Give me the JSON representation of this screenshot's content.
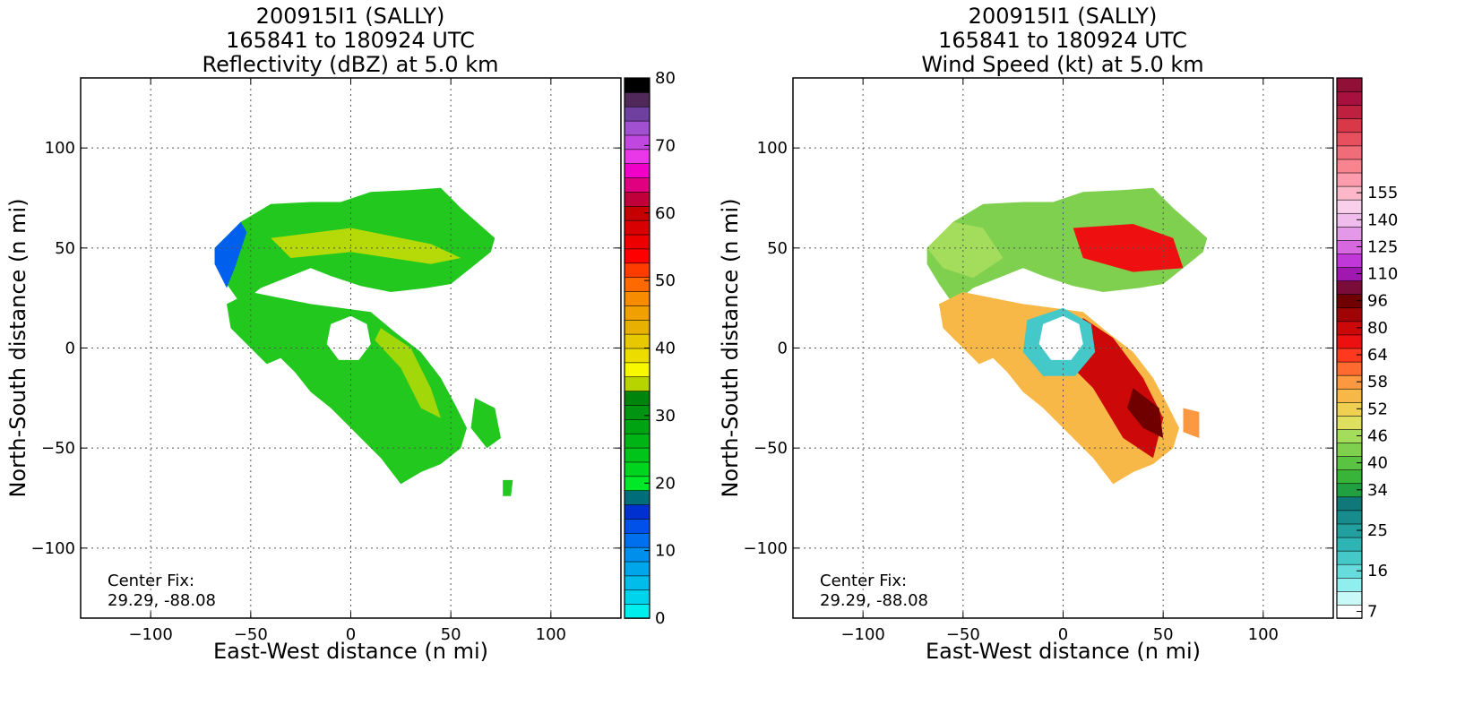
{
  "chart_data": [
    {
      "type": "heatmap",
      "title_lines": [
        "200915I1 (SALLY)",
        "165841 to 180924 UTC",
        "Reflectivity (dBZ) at 5.0 km"
      ],
      "xlabel": "East-West distance (n mi)",
      "ylabel": "North-South distance (n mi)",
      "xlim": [
        -135,
        135
      ],
      "ylim": [
        -135,
        135
      ],
      "xticks": [
        "−100",
        "−50",
        "0",
        "50",
        "100"
      ],
      "xtick_values": [
        -100,
        -50,
        0,
        50,
        100
      ],
      "yticks": [
        "−100",
        "−50",
        "0",
        "50",
        "100"
      ],
      "ytick_values": [
        -100,
        -50,
        0,
        50,
        100
      ],
      "grid": true,
      "annotation": [
        "Center Fix:",
        "29.29, -88.08"
      ],
      "colorbar": {
        "vmin": 0,
        "vmax": 80,
        "tick_values": [
          0,
          10,
          20,
          30,
          40,
          50,
          60,
          70,
          80
        ],
        "tick_labels": [
          "0",
          "10",
          "20",
          "30",
          "40",
          "50",
          "60",
          "70",
          "80"
        ],
        "colors": [
          "#00eeee",
          "#00d4ec",
          "#00bdea",
          "#00a6ea",
          "#0090ec",
          "#0070ee",
          "#0050ea",
          "#0030d0",
          "#006e7a",
          "#00e828",
          "#00d41e",
          "#00c41a",
          "#00b416",
          "#00a412",
          "#009410",
          "#00840c",
          "#b8d400",
          "#f8f800",
          "#ecdc00",
          "#e8c800",
          "#e8b000",
          "#f0a000",
          "#f88c00",
          "#ff6a00",
          "#ff3c00",
          "#ff0000",
          "#ec0000",
          "#d80000",
          "#c40000",
          "#c0003a",
          "#e00080",
          "#f000c8",
          "#e838e8",
          "#c048e0",
          "#a050d0",
          "#7040a0",
          "#50285a",
          "#000000"
        ]
      }
    },
    {
      "type": "heatmap",
      "title_lines": [
        "200915I1 (SALLY)",
        "165841 to 180924 UTC",
        "Wind Speed (kt) at 5.0 km"
      ],
      "xlabel": "East-West distance (n mi)",
      "ylabel": "North-South distance (n mi)",
      "xlim": [
        -135,
        135
      ],
      "ylim": [
        -135,
        135
      ],
      "xticks": [
        "−100",
        "−50",
        "0",
        "50",
        "100"
      ],
      "xtick_values": [
        -100,
        -50,
        0,
        50,
        100
      ],
      "yticks": [
        "−100",
        "−50",
        "0",
        "50",
        "100"
      ],
      "ytick_values": [
        -100,
        -50,
        0,
        50,
        100
      ],
      "grid": true,
      "annotation": [
        "Center Fix:",
        "29.29, -88.08"
      ],
      "colorbar": {
        "tick_labels": [
          "7",
          "16",
          "25",
          "34",
          "40",
          "46",
          "52",
          "58",
          "64",
          "80",
          "96",
          "110",
          "125",
          "140",
          "155"
        ],
        "tick_bins": [
          0,
          3,
          6,
          9,
          11,
          13,
          15,
          17,
          19,
          21,
          23,
          25,
          27,
          29,
          31
        ],
        "colors": [
          "#ffffff",
          "#c8f8f8",
          "#90eeee",
          "#66dcdc",
          "#44c8c8",
          "#2eb4b4",
          "#22a0a0",
          "#188c8c",
          "#107878",
          "#20a040",
          "#38b438",
          "#5ac442",
          "#80d050",
          "#a4dc5c",
          "#e0e060",
          "#f0d050",
          "#f8b848",
          "#fc9840",
          "#ff6a30",
          "#ff3820",
          "#ee1010",
          "#cc0808",
          "#a00404",
          "#700000",
          "#7a0c3a",
          "#a018b0",
          "#c038d8",
          "#d868e0",
          "#e498e8",
          "#f0bcec",
          "#f8d0ec",
          "#fcb8c8",
          "#fc9cac",
          "#f88490",
          "#f06c78",
          "#e85060",
          "#d83848",
          "#c02040",
          "#a81040",
          "#901038"
        ]
      }
    }
  ]
}
